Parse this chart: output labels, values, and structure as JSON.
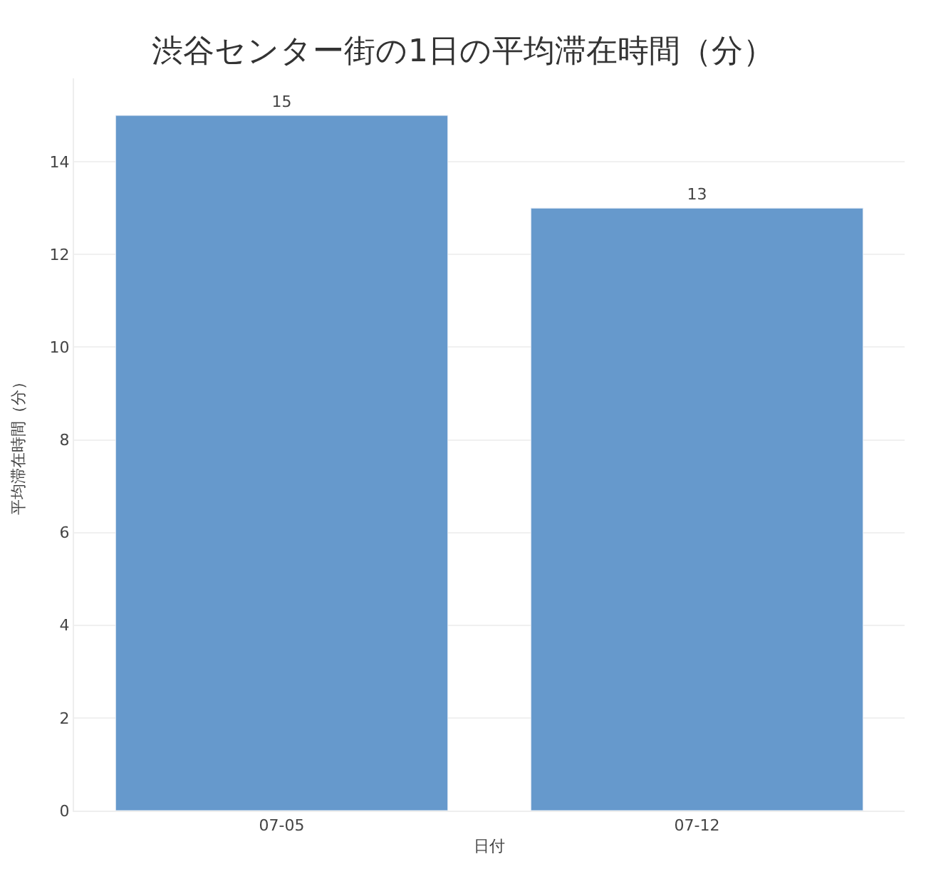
{
  "chart_data": {
    "type": "bar",
    "title": "渋谷センター街の1日の平均滞在時間（分）",
    "xlabel": "日付",
    "ylabel": "平均滞在時間（分）",
    "categories": [
      "07-05",
      "07-12"
    ],
    "values": [
      15,
      13
    ],
    "color": "#6699cc",
    "ylim": [
      0,
      15.8
    ],
    "yticks": [
      0,
      2,
      4,
      6,
      8,
      10,
      12,
      14
    ],
    "grid": "y",
    "data_labels": true
  }
}
